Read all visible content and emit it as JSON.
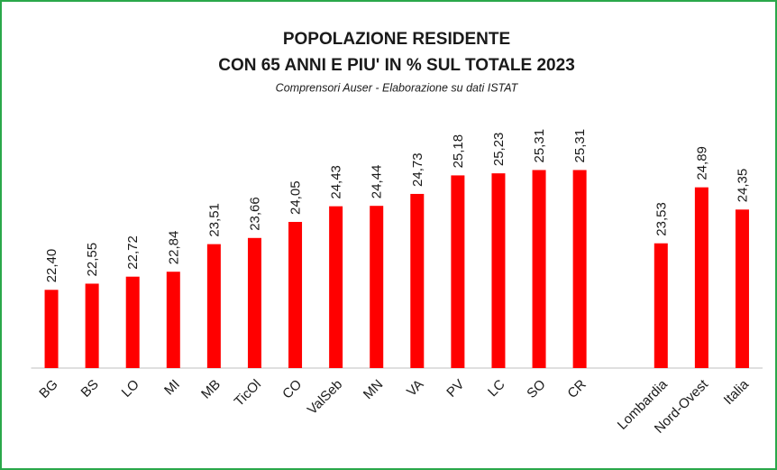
{
  "chart_data": {
    "type": "bar",
    "title": "POPOLAZIONE RESIDENTE",
    "subtitle": "CON 65 ANNI E PIU' IN % SUL TOTALE 2023",
    "note": "Comprensori Auser - Elaborazione su dati ISTAT",
    "categories": [
      "BG",
      "BS",
      "LO",
      "MI",
      "MB",
      "TicOl",
      "CO",
      "ValSeb",
      "MN",
      "VA",
      "PV",
      "LC",
      "SO",
      "CR",
      null,
      "Lombardia",
      "Nord-Ovest",
      "Italia"
    ],
    "values": [
      22.4,
      22.55,
      22.72,
      22.84,
      23.51,
      23.66,
      24.05,
      24.43,
      24.44,
      24.73,
      25.18,
      25.23,
      25.31,
      25.31,
      null,
      23.53,
      24.89,
      24.35
    ],
    "value_labels": [
      "22,40",
      "22,55",
      "22,72",
      "22,84",
      "23,51",
      "23,66",
      "24,05",
      "24,43",
      "24,44",
      "24,73",
      "25,18",
      "25,23",
      "25,31",
      "25,31",
      null,
      "23,53",
      "24,89",
      "24,35"
    ],
    "color": "#ff0000",
    "ylim": [
      20.5,
      26
    ]
  }
}
